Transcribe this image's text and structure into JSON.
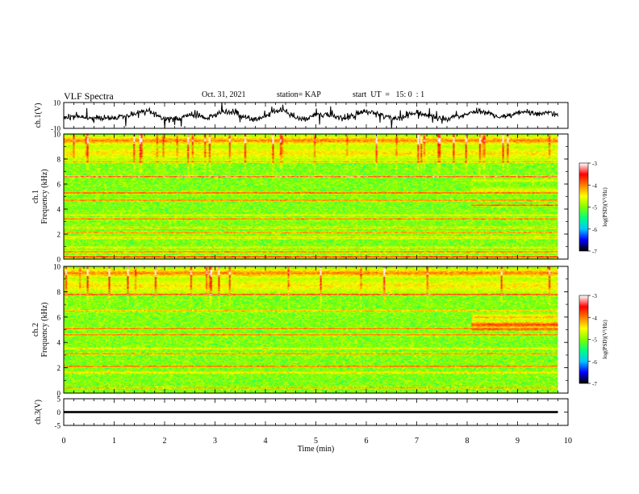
{
  "header": {
    "title": "VLF Spectra",
    "date": "Oct. 31, 2021",
    "station": "station= KAP",
    "start_ut": "start  UT  =   15: 0  : 1"
  },
  "chart_data": [
    {
      "type": "line",
      "panel": "ch1-waveform",
      "ylabel": "ch.1(V)",
      "ylim": [
        -10,
        10
      ],
      "yticks": [
        "10",
        "-10"
      ],
      "xlim": [
        0,
        9.8
      ],
      "series_color": "#000000",
      "trend": [
        [
          0.0,
          -1.5
        ],
        [
          0.3,
          -1.0
        ],
        [
          0.5,
          -2.5
        ],
        [
          0.8,
          -1.8
        ],
        [
          1.0,
          -2.0
        ],
        [
          1.2,
          -0.5
        ],
        [
          1.5,
          2.5
        ],
        [
          1.7,
          3.5
        ],
        [
          1.9,
          -1.0
        ],
        [
          2.1,
          -3.0
        ],
        [
          2.3,
          -2.0
        ],
        [
          2.5,
          1.0
        ],
        [
          2.8,
          -2.5
        ],
        [
          3.0,
          0.5
        ],
        [
          3.2,
          3.0
        ],
        [
          3.4,
          2.5
        ],
        [
          3.6,
          -2.0
        ],
        [
          3.8,
          -3.5
        ],
        [
          4.0,
          -0.5
        ],
        [
          4.2,
          4.0
        ],
        [
          4.4,
          3.0
        ],
        [
          4.6,
          -1.5
        ],
        [
          4.8,
          -2.5
        ],
        [
          5.0,
          0.5
        ],
        [
          5.3,
          0.0
        ],
        [
          5.6,
          -2.0
        ],
        [
          5.8,
          1.5
        ],
        [
          6.0,
          3.5
        ],
        [
          6.2,
          2.0
        ],
        [
          6.4,
          -1.0
        ],
        [
          6.6,
          -2.5
        ],
        [
          6.8,
          -0.5
        ],
        [
          7.0,
          2.5
        ],
        [
          7.2,
          1.0
        ],
        [
          7.4,
          -2.0
        ],
        [
          7.6,
          -3.0
        ],
        [
          7.8,
          -1.0
        ],
        [
          8.0,
          1.5
        ],
        [
          8.2,
          3.0
        ],
        [
          8.4,
          2.0
        ],
        [
          8.6,
          -1.5
        ],
        [
          8.8,
          -0.5
        ],
        [
          9.0,
          2.5
        ],
        [
          9.2,
          3.0
        ],
        [
          9.4,
          1.5
        ],
        [
          9.6,
          2.0
        ],
        [
          9.8,
          0.5
        ]
      ]
    },
    {
      "type": "heatmap",
      "panel": "ch1-spectrogram",
      "ylabel": "ch.1\nFrequency  (kHz)",
      "ylim": [
        0,
        10
      ],
      "yticks": [
        "0",
        "2",
        "4",
        "6",
        "8",
        "10"
      ],
      "xlim": [
        0,
        9.8
      ],
      "base_level": -5.0,
      "bands_kHz": [
        {
          "f": 0.15,
          "width": 0.15,
          "level": -3.5
        },
        {
          "f": 0.55,
          "width": 0.12,
          "level": -3.8
        },
        {
          "f": 0.9,
          "width": 0.1,
          "level": -4.2
        },
        {
          "f": 1.7,
          "width": 0.15,
          "level": -4.3
        },
        {
          "f": 2.1,
          "width": 0.1,
          "level": -3.8
        },
        {
          "f": 2.5,
          "width": 0.1,
          "level": -4.1
        },
        {
          "f": 3.2,
          "width": 0.1,
          "level": -3.7
        },
        {
          "f": 3.5,
          "width": 0.1,
          "level": -4.4
        },
        {
          "f": 4.7,
          "width": 0.1,
          "level": -3.7
        },
        {
          "f": 5.3,
          "width": 0.12,
          "level": -3.6
        },
        {
          "f": 6.6,
          "width": 0.1,
          "level": -3.3
        },
        {
          "f": 7.8,
          "width": 0.12,
          "level": -4.2
        },
        {
          "f": 8.5,
          "width": 0.8,
          "level": -4.4
        },
        {
          "f": 9.5,
          "width": 0.5,
          "level": -4.0
        }
      ],
      "change_time_min": 8.1,
      "bands_after_change_kHz": [
        {
          "f": 4.3,
          "width": 0.1,
          "level": -3.5
        },
        {
          "f": 5.5,
          "width": 0.3,
          "level": -4.6
        },
        {
          "f": 6.3,
          "width": 0.15,
          "level": -4.6
        }
      ],
      "colorbar": {
        "label": "log(PSD)(V²/Hz)",
        "range": [
          -7,
          -3
        ],
        "ticks": [
          "-3",
          "-4",
          "-5",
          "-6",
          "-7"
        ],
        "colors": [
          "#000000",
          "#0000ff",
          "#00c8ff",
          "#00ff80",
          "#80ff00",
          "#ffff00",
          "#ff8000",
          "#ff0000",
          "#ffffff"
        ]
      }
    },
    {
      "type": "heatmap",
      "panel": "ch2-spectrogram",
      "ylabel": "ch.2\nFrequency  (kHz)",
      "ylim": [
        0,
        10
      ],
      "yticks": [
        "0",
        "2",
        "4",
        "6",
        "8",
        "10"
      ],
      "xlim": [
        0,
        9.8
      ],
      "base_level": -5.0,
      "bands_kHz": [
        {
          "f": 0.1,
          "width": 0.2,
          "level": -6.2
        },
        {
          "f": 0.4,
          "width": 0.1,
          "level": -3.9
        },
        {
          "f": 1.6,
          "width": 0.1,
          "level": -4.2
        },
        {
          "f": 2.1,
          "width": 0.1,
          "level": -3.6
        },
        {
          "f": 3.1,
          "width": 0.1,
          "level": -3.8
        },
        {
          "f": 3.5,
          "width": 0.1,
          "level": -4.3
        },
        {
          "f": 4.6,
          "width": 0.1,
          "level": -3.7
        },
        {
          "f": 5.1,
          "width": 0.1,
          "level": -3.7
        },
        {
          "f": 6.5,
          "width": 0.1,
          "level": -4.0
        },
        {
          "f": 7.8,
          "width": 0.12,
          "level": -3.5
        },
        {
          "f": 8.5,
          "width": 0.8,
          "level": -4.4
        },
        {
          "f": 9.5,
          "width": 0.5,
          "level": -4.0
        }
      ],
      "change_time_min": 8.1,
      "bands_after_change_kHz": [
        {
          "f": 5.4,
          "width": 0.4,
          "level": -3.7
        },
        {
          "f": 6.0,
          "width": 0.3,
          "level": -4.2
        },
        {
          "f": 5.0,
          "width": 0.1,
          "level": -3.5
        }
      ],
      "colorbar": {
        "label": "log(PSD)(V²/Hz)",
        "range": [
          -7,
          -3
        ],
        "ticks": [
          "-3",
          "-4",
          "-5",
          "-6",
          "-7"
        ],
        "colors": [
          "#000000",
          "#0000ff",
          "#00c8ff",
          "#00ff80",
          "#80ff00",
          "#ffff00",
          "#ff8000",
          "#ff0000",
          "#ffffff"
        ]
      }
    },
    {
      "type": "line",
      "panel": "ch3-waveform",
      "ylabel": "ch.3(V)",
      "ylim": [
        -5,
        5
      ],
      "yticks": [
        "5",
        "0",
        "-5"
      ],
      "xlim": [
        0,
        9.8
      ],
      "series_color": "#000000",
      "band": [
        -0.4,
        0.4
      ]
    }
  ],
  "x_axis": {
    "label": "Time  (min)",
    "xlim": [
      0,
      10
    ],
    "ticks": [
      "0",
      "1",
      "2",
      "3",
      "4",
      "5",
      "6",
      "7",
      "8",
      "9",
      "10"
    ]
  }
}
